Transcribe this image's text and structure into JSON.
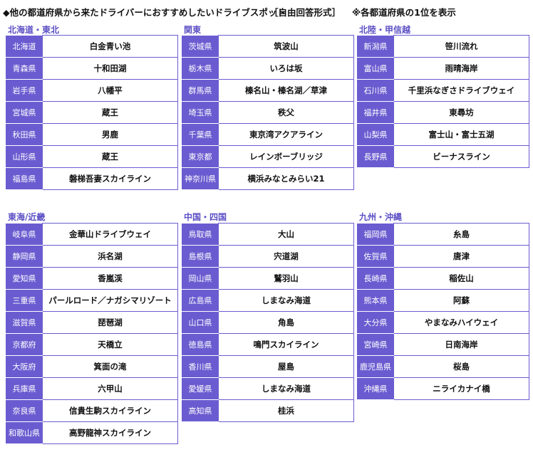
{
  "header": {
    "title": "◆他の都道府県から来たドライバーにおすすめしたいドライブスポット",
    "format": "［自由回答形式］",
    "note": "※各都道府県の1位を表示"
  },
  "regions": [
    {
      "name": "北海道・東北",
      "rows": [
        [
          "北海道",
          "白金青い池"
        ],
        [
          "青森県",
          "十和田湖"
        ],
        [
          "岩手県",
          "八幡平"
        ],
        [
          "宮城県",
          "蔵王"
        ],
        [
          "秋田県",
          "男鹿"
        ],
        [
          "山形県",
          "蔵王"
        ],
        [
          "福島県",
          "磐梯吾妻スカイライン"
        ]
      ]
    },
    {
      "name": "関東",
      "rows": [
        [
          "茨城県",
          "筑波山"
        ],
        [
          "栃木県",
          "いろは坂"
        ],
        [
          "群馬県",
          "榛名山・榛名湖／草津"
        ],
        [
          "埼玉県",
          "秩父"
        ],
        [
          "千葉県",
          "東京湾アクアライン"
        ],
        [
          "東京都",
          "レインボーブリッジ"
        ],
        [
          "神奈川県",
          "横浜みなとみらい21"
        ]
      ]
    },
    {
      "name": "北陸・甲信越",
      "rows": [
        [
          "新潟県",
          "笹川流れ"
        ],
        [
          "富山県",
          "雨晴海岸"
        ],
        [
          "石川県",
          "千里浜なぎさドライブウェイ"
        ],
        [
          "福井県",
          "東尋坊"
        ],
        [
          "山梨県",
          "富士山・富士五湖"
        ],
        [
          "長野県",
          "ビーナスライン"
        ]
      ]
    },
    {
      "name": "東海/近畿",
      "rows": [
        [
          "岐阜県",
          "金華山ドライブウェイ"
        ],
        [
          "静岡県",
          "浜名湖"
        ],
        [
          "愛知県",
          "香嵐渓"
        ],
        [
          "三重県",
          "パールロード／ナガシマリゾート"
        ],
        [
          "滋賀県",
          "琵琶湖"
        ],
        [
          "京都府",
          "天橋立"
        ],
        [
          "大阪府",
          "箕面の滝"
        ],
        [
          "兵庫県",
          "六甲山"
        ],
        [
          "奈良県",
          "信貴生駒スカイライン"
        ],
        [
          "和歌山県",
          "高野龍神スカイライン"
        ]
      ]
    },
    {
      "name": "中国・四国",
      "rows": [
        [
          "鳥取県",
          "大山"
        ],
        [
          "島根県",
          "宍道湖"
        ],
        [
          "岡山県",
          "鷲羽山"
        ],
        [
          "広島県",
          "しまなみ海道"
        ],
        [
          "山口県",
          "角島"
        ],
        [
          "徳島県",
          "鳴門スカイライン"
        ],
        [
          "香川県",
          "屋島"
        ],
        [
          "愛媛県",
          "しまなみ海道"
        ],
        [
          "高知県",
          "桂浜"
        ]
      ]
    },
    {
      "name": "九州・沖縄",
      "rows": [
        [
          "福岡県",
          "糸島"
        ],
        [
          "佐賀県",
          "唐津"
        ],
        [
          "長崎県",
          "稲佐山"
        ],
        [
          "熊本県",
          "阿蘇"
        ],
        [
          "大分県",
          "やまなみハイウェイ"
        ],
        [
          "宮崎県",
          "日南海岸"
        ],
        [
          "鹿児島県",
          "桜島"
        ],
        [
          "沖縄県",
          "ニライカナイ橋"
        ]
      ]
    }
  ]
}
